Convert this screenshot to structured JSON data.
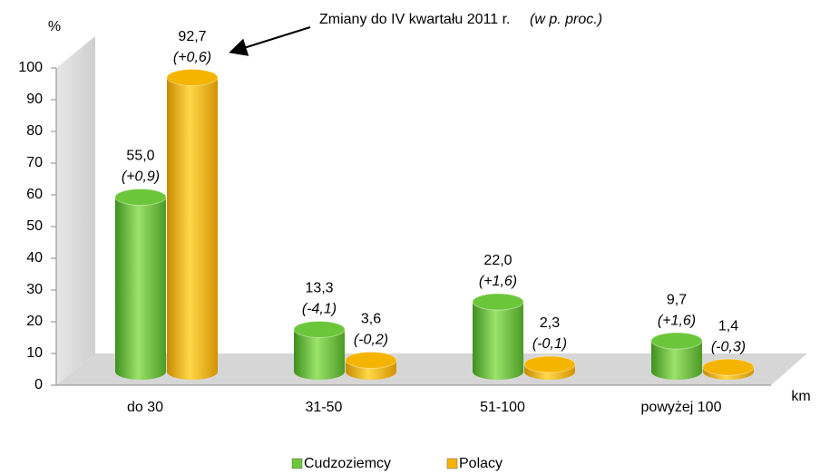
{
  "chart_data": {
    "type": "bar",
    "y_label": "%",
    "x_label": "km",
    "annotation": "Zmiany do IV kwartału 2011 r.",
    "annotation_note": "(w p. proc.)",
    "categories": [
      "do 30",
      "31-50",
      "51-100",
      "powyżej 100"
    ],
    "series": [
      {
        "name": "Cudzoziemcy",
        "color": "#6cc63a",
        "values": [
          55.0,
          13.3,
          22.0,
          9.7
        ],
        "value_labels": [
          "55,0",
          "13,3",
          "22,0",
          "9,7"
        ],
        "change_labels": [
          "(+0,9)",
          "(-4,1)",
          "(+1,6)",
          "(+1,6)"
        ]
      },
      {
        "name": "Polacy",
        "color": "#f5b400",
        "values": [
          92.7,
          3.6,
          2.3,
          1.4
        ],
        "value_labels": [
          "92,7",
          "3,6",
          "2,3",
          "1,4"
        ],
        "change_labels": [
          "(+0,6)",
          "(-0,2)",
          "(-0,1)",
          "(-0,3)"
        ]
      }
    ],
    "ylim": [
      0,
      100
    ],
    "yticks": [
      0,
      10,
      20,
      30,
      40,
      50,
      60,
      70,
      80,
      90,
      100
    ],
    "grid": false,
    "legend": "bottom"
  }
}
